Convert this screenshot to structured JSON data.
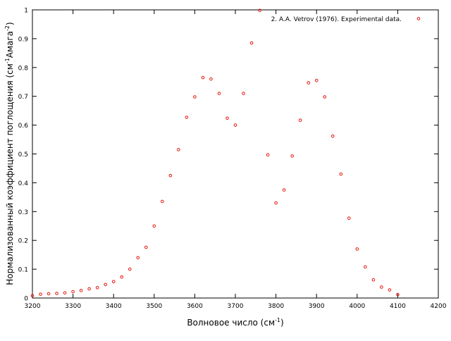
{
  "chart_data": {
    "type": "scatter",
    "title": "",
    "xlabel_main": "Волновое число (см",
    "xlabel_sup": "-1",
    "xlabel_tail": ")",
    "ylabel_main": "Нормализованный коэффициент поглощения (см",
    "ylabel_sup1": "-1",
    "ylabel_mid": "Амага",
    "ylabel_sup2": "-2",
    "ylabel_tail": ")",
    "xlim": [
      3200,
      4200
    ],
    "ylim": [
      0,
      1
    ],
    "xticks": [
      3200,
      3300,
      3400,
      3500,
      3600,
      3700,
      3800,
      3900,
      4000,
      4100,
      4200
    ],
    "yticks": [
      0,
      0.1,
      0.2,
      0.3,
      0.4,
      0.5,
      0.6,
      0.7,
      0.8,
      0.9,
      1
    ],
    "grid": false,
    "legend_position": "top-right",
    "series": [
      {
        "name": "2. A.A. Vetrov (1976). Experimental data.",
        "color": "#e8140c",
        "marker": "open-circle",
        "x": [
          3200,
          3220,
          3240,
          3260,
          3280,
          3300,
          3320,
          3340,
          3360,
          3380,
          3400,
          3420,
          3440,
          3460,
          3480,
          3500,
          3520,
          3540,
          3560,
          3580,
          3600,
          3620,
          3640,
          3660,
          3680,
          3700,
          3720,
          3740,
          3760,
          3780,
          3800,
          3820,
          3840,
          3860,
          3880,
          3900,
          3920,
          3940,
          3960,
          3980,
          4000,
          4020,
          4040,
          4060,
          4080,
          4100
        ],
        "y": [
          0.008,
          0.013,
          0.015,
          0.016,
          0.018,
          0.022,
          0.026,
          0.032,
          0.036,
          0.047,
          0.057,
          0.073,
          0.1,
          0.14,
          0.176,
          0.25,
          0.335,
          0.425,
          0.515,
          0.627,
          0.698,
          0.765,
          0.76,
          0.71,
          0.624,
          0.6,
          0.71,
          0.885,
          0.998,
          0.497,
          0.33,
          0.375,
          0.493,
          0.617,
          0.747,
          0.755,
          0.698,
          0.562,
          0.43,
          0.277,
          0.17,
          0.108,
          0.063,
          0.038,
          0.028,
          0.012
        ]
      }
    ]
  }
}
